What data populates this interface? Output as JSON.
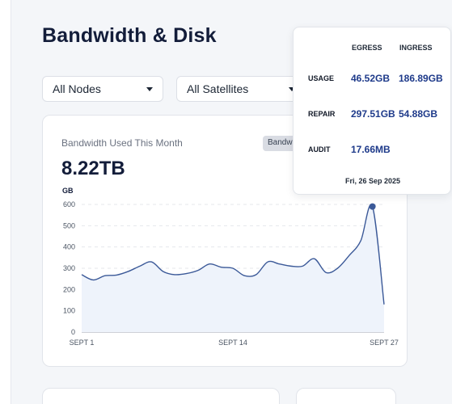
{
  "page": {
    "title": "Bandwidth & Disk"
  },
  "filters": {
    "nodes": {
      "selected": "All Nodes"
    },
    "satellites": {
      "selected": "All Satellites"
    }
  },
  "bandwidth_card": {
    "label": "Bandwidth Used This Month",
    "value": "8.22TB",
    "chip": "Bandwidth"
  },
  "tooltip": {
    "col_egress": "EGRESS",
    "col_ingress": "INGRESS",
    "rows": [
      {
        "label": "USAGE",
        "egress": "46.52GB",
        "ingress": "186.89GB"
      },
      {
        "label": "REPAIR",
        "egress": "297.51GB",
        "ingress": "54.88GB"
      },
      {
        "label": "AUDIT",
        "egress": "17.66MB",
        "ingress": ""
      }
    ],
    "date": "Fri, 26 Sep 2025"
  },
  "colors": {
    "accent": "#1e3a8a",
    "line": "#3b5998",
    "fill": "#eef3fb"
  },
  "chart_data": {
    "type": "area",
    "ylabel": "GB",
    "ylim": [
      0,
      600
    ],
    "yticks": [
      0,
      100,
      200,
      300,
      400,
      500,
      600
    ],
    "xtick_labels": [
      "SEPT 1",
      "SEPT 14",
      "SEPT 27"
    ],
    "xtick_days": [
      1,
      14,
      27
    ],
    "x": [
      1,
      2,
      3,
      4,
      5,
      6,
      7,
      8,
      9,
      10,
      11,
      12,
      13,
      14,
      15,
      16,
      17,
      18,
      19,
      20,
      21,
      22,
      23,
      24,
      25,
      26,
      27
    ],
    "series": [
      {
        "values": [
          270,
          245,
          265,
          268,
          285,
          310,
          330,
          285,
          270,
          275,
          290,
          320,
          305,
          300,
          265,
          270,
          330,
          320,
          310,
          310,
          345,
          280,
          300,
          360,
          430,
          590,
          130
        ]
      }
    ],
    "highlight_x": 26,
    "grid": "horizontal-dashed"
  }
}
